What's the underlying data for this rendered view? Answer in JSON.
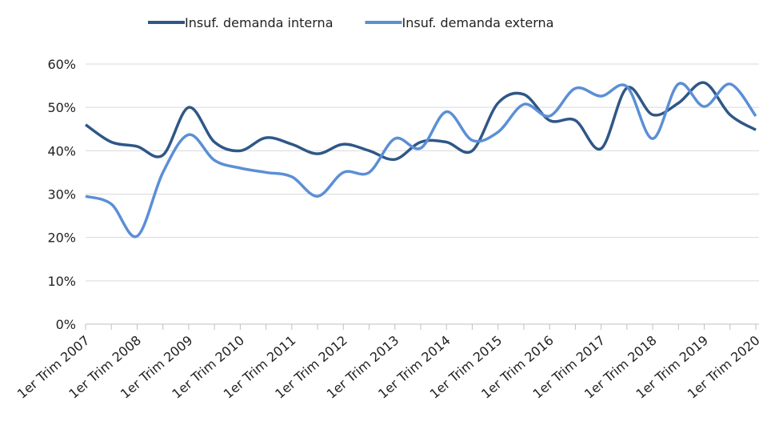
{
  "chart_data": {
    "type": "line",
    "categories": [
      "1er Trim 2007",
      null,
      "1er Trim 2008",
      null,
      "1er Trim 2009",
      null,
      "1er Trim 2010",
      null,
      "1er Trim 2011",
      null,
      "1er Trim 2012",
      null,
      "1er Trim 2013",
      null,
      "1er Trim 2014",
      null,
      "1er Trim 2015",
      null,
      "1er Trim 2016",
      null,
      "1er Trim 2017",
      null,
      "1er Trim 2018",
      null,
      "1er Trim 2019",
      null,
      "1er Trim 2020"
    ],
    "series": [
      {
        "name": "Insuf. demanda interna",
        "color": "#2f5787",
        "values": [
          46,
          42,
          41,
          39,
          50,
          42,
          40,
          43,
          41.5,
          39.3,
          41.5,
          40,
          38,
          42,
          42,
          40,
          51,
          53,
          47,
          47,
          40.5,
          54.5,
          48.3,
          51,
          55.7,
          48.3,
          44.8
        ]
      },
      {
        "name": "Insuf. demanda externa",
        "color": "#5b8fd6",
        "values": [
          29.5,
          27.7,
          20.3,
          35,
          43.7,
          37.8,
          36,
          35,
          34,
          29.5,
          35,
          35,
          42.8,
          40.6,
          49,
          42.4,
          44.3,
          50.7,
          48,
          54.4,
          52.6,
          54.8,
          42.8,
          55.4,
          50.2,
          55.4,
          48
        ]
      }
    ],
    "ylim": [
      0,
      60
    ],
    "yticks": [
      {
        "value": 0,
        "label": "0%"
      },
      {
        "value": 10,
        "label": "10%"
      },
      {
        "value": 20,
        "label": "20%"
      },
      {
        "value": 30,
        "label": "30%"
      },
      {
        "value": 40,
        "label": "40%"
      },
      {
        "value": 50,
        "label": "50%"
      },
      {
        "value": 60,
        "label": "60%"
      }
    ],
    "grid": true,
    "legend": "top"
  }
}
